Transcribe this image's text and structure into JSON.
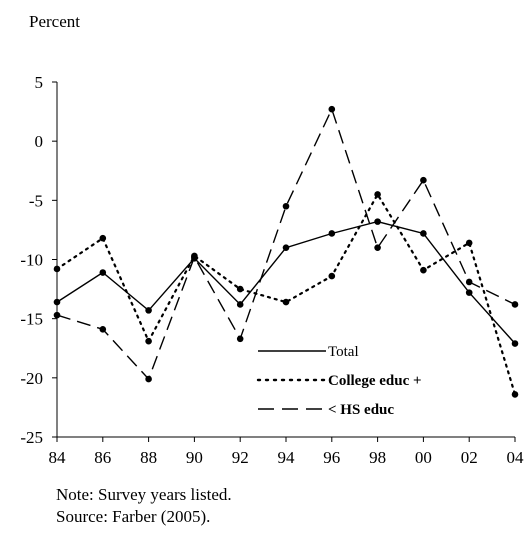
{
  "chart_data": {
    "type": "line",
    "title": "",
    "ylabel": "Percent",
    "xlabel": "",
    "categories": [
      "84",
      "86",
      "88",
      "90",
      "92",
      "94",
      "96",
      "98",
      "00",
      "02",
      "04"
    ],
    "ylim": [
      -25,
      5
    ],
    "yticks": [
      5,
      0,
      -5,
      -10,
      -15,
      -20,
      -25
    ],
    "grid": false,
    "legend_position": "bottom-center",
    "series": [
      {
        "name": "Total",
        "style": "solid",
        "values": [
          -13.6,
          -11.1,
          -14.3,
          -9.9,
          -13.8,
          -9.0,
          -7.8,
          -6.8,
          -7.8,
          -12.8,
          -17.1
        ]
      },
      {
        "name": "College educ +",
        "style": "dotted",
        "values": [
          -10.8,
          -8.2,
          -16.9,
          -9.7,
          -12.5,
          -13.6,
          -11.4,
          -4.5,
          -10.9,
          -8.6,
          -21.4
        ]
      },
      {
        "name": "< HS educ",
        "style": "dashed",
        "values": [
          -14.7,
          -15.9,
          -20.1,
          -9.8,
          -16.7,
          -5.5,
          2.7,
          -9.0,
          -3.3,
          -11.9,
          -13.8
        ]
      }
    ]
  },
  "notes": {
    "note": "Note: Survey years listed.",
    "source": "Source: Farber (2005)."
  }
}
